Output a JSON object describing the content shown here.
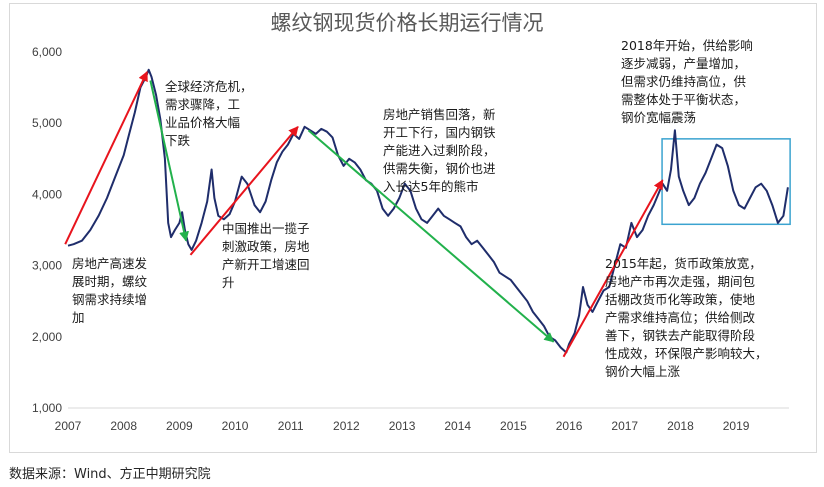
{
  "chart_data": {
    "type": "line",
    "title": "螺纹钢现货价格长期运行情况",
    "x_ticks": [
      "2007",
      "2008",
      "2009",
      "2010",
      "2011",
      "2012",
      "2013",
      "2014",
      "2015",
      "2016",
      "2017",
      "2018",
      "2019"
    ],
    "y_ticks": [
      "1,000",
      "2,000",
      "3,000",
      "4,000",
      "5,000",
      "6,000"
    ],
    "ylim": [
      1000,
      6000
    ],
    "xlim": [
      2007.0,
      2019.95
    ],
    "grid": false,
    "legend": "none",
    "series": [
      {
        "color": "#1f2d6b",
        "points": [
          [
            2007.0,
            3280
          ],
          [
            2007.1,
            3300
          ],
          [
            2007.25,
            3350
          ],
          [
            2007.4,
            3500
          ],
          [
            2007.55,
            3700
          ],
          [
            2007.7,
            3950
          ],
          [
            2007.85,
            4250
          ],
          [
            2008.0,
            4550
          ],
          [
            2008.1,
            4850
          ],
          [
            2008.2,
            5150
          ],
          [
            2008.3,
            5500
          ],
          [
            2008.4,
            5650
          ],
          [
            2008.45,
            5750
          ],
          [
            2008.5,
            5650
          ],
          [
            2008.58,
            5400
          ],
          [
            2008.66,
            5050
          ],
          [
            2008.74,
            4500
          ],
          [
            2008.8,
            3600
          ],
          [
            2008.85,
            3400
          ],
          [
            2008.92,
            3500
          ],
          [
            2009.0,
            3600
          ],
          [
            2009.05,
            3750
          ],
          [
            2009.1,
            3500
          ],
          [
            2009.16,
            3300
          ],
          [
            2009.22,
            3220
          ],
          [
            2009.3,
            3350
          ],
          [
            2009.4,
            3600
          ],
          [
            2009.5,
            3900
          ],
          [
            2009.58,
            4350
          ],
          [
            2009.63,
            3950
          ],
          [
            2009.7,
            3700
          ],
          [
            2009.8,
            3650
          ],
          [
            2009.9,
            3720
          ],
          [
            2010.0,
            3900
          ],
          [
            2010.12,
            4250
          ],
          [
            2010.22,
            4150
          ],
          [
            2010.35,
            3850
          ],
          [
            2010.45,
            3750
          ],
          [
            2010.55,
            3900
          ],
          [
            2010.65,
            4200
          ],
          [
            2010.75,
            4450
          ],
          [
            2010.85,
            4600
          ],
          [
            2010.95,
            4700
          ],
          [
            2011.05,
            4850
          ],
          [
            2011.15,
            4780
          ],
          [
            2011.25,
            4950
          ],
          [
            2011.35,
            4900
          ],
          [
            2011.45,
            4850
          ],
          [
            2011.55,
            4920
          ],
          [
            2011.65,
            4880
          ],
          [
            2011.75,
            4800
          ],
          [
            2011.85,
            4550
          ],
          [
            2011.95,
            4400
          ],
          [
            2012.05,
            4500
          ],
          [
            2012.15,
            4450
          ],
          [
            2012.25,
            4350
          ],
          [
            2012.35,
            4200
          ],
          [
            2012.45,
            4150
          ],
          [
            2012.55,
            4050
          ],
          [
            2012.65,
            3800
          ],
          [
            2012.75,
            3700
          ],
          [
            2012.85,
            3800
          ],
          [
            2012.95,
            3950
          ],
          [
            2013.05,
            4150
          ],
          [
            2013.15,
            4050
          ],
          [
            2013.25,
            3800
          ],
          [
            2013.35,
            3650
          ],
          [
            2013.45,
            3600
          ],
          [
            2013.55,
            3700
          ],
          [
            2013.65,
            3800
          ],
          [
            2013.75,
            3700
          ],
          [
            2013.85,
            3650
          ],
          [
            2013.95,
            3600
          ],
          [
            2014.05,
            3550
          ],
          [
            2014.15,
            3400
          ],
          [
            2014.25,
            3300
          ],
          [
            2014.35,
            3350
          ],
          [
            2014.45,
            3250
          ],
          [
            2014.55,
            3150
          ],
          [
            2014.65,
            3050
          ],
          [
            2014.75,
            2900
          ],
          [
            2014.85,
            2850
          ],
          [
            2014.95,
            2800
          ],
          [
            2015.05,
            2700
          ],
          [
            2015.15,
            2600
          ],
          [
            2015.25,
            2500
          ],
          [
            2015.35,
            2350
          ],
          [
            2015.45,
            2250
          ],
          [
            2015.55,
            2150
          ],
          [
            2015.65,
            2000
          ],
          [
            2015.75,
            1950
          ],
          [
            2015.85,
            1850
          ],
          [
            2015.95,
            1780
          ],
          [
            2016.0,
            1900
          ],
          [
            2016.1,
            2050
          ],
          [
            2016.18,
            2300
          ],
          [
            2016.25,
            2700
          ],
          [
            2016.33,
            2450
          ],
          [
            2016.42,
            2350
          ],
          [
            2016.52,
            2500
          ],
          [
            2016.62,
            2650
          ],
          [
            2016.72,
            2700
          ],
          [
            2016.82,
            3000
          ],
          [
            2016.92,
            3300
          ],
          [
            2017.02,
            3250
          ],
          [
            2017.12,
            3600
          ],
          [
            2017.22,
            3400
          ],
          [
            2017.32,
            3500
          ],
          [
            2017.42,
            3700
          ],
          [
            2017.52,
            3850
          ],
          [
            2017.6,
            4000
          ],
          [
            2017.68,
            4150
          ],
          [
            2017.76,
            4050
          ],
          [
            2017.83,
            4350
          ],
          [
            2017.9,
            4900
          ],
          [
            2017.97,
            4250
          ],
          [
            2018.05,
            4050
          ],
          [
            2018.15,
            3850
          ],
          [
            2018.25,
            3950
          ],
          [
            2018.35,
            4150
          ],
          [
            2018.45,
            4300
          ],
          [
            2018.55,
            4500
          ],
          [
            2018.65,
            4700
          ],
          [
            2018.75,
            4650
          ],
          [
            2018.85,
            4400
          ],
          [
            2018.95,
            4050
          ],
          [
            2019.05,
            3850
          ],
          [
            2019.15,
            3800
          ],
          [
            2019.25,
            3950
          ],
          [
            2019.35,
            4100
          ],
          [
            2019.45,
            4150
          ],
          [
            2019.55,
            4050
          ],
          [
            2019.65,
            3850
          ],
          [
            2019.75,
            3600
          ],
          [
            2019.85,
            3700
          ],
          [
            2019.93,
            4100
          ]
        ]
      }
    ],
    "annotations": [
      {
        "lines": [
          "房地产高速发",
          "展时期，螺纹",
          "钢需求持续增",
          "加"
        ]
      },
      {
        "lines": [
          "全球经济危机，",
          "需求骤降，工",
          "业品价格大幅",
          "下跌"
        ]
      },
      {
        "lines": [
          "中国推出一揽子",
          "刺激政策，房地",
          "产新开工增速回",
          "升"
        ]
      },
      {
        "lines": [
          "房地产销售回落，新",
          "开工下行，国内钢铁",
          "产能进入过剩阶段，",
          "供需失衡，钢价也进",
          "入长达5年的熊市"
        ]
      },
      {
        "lines": [
          "2018年开始，供给影响",
          "逐步减弱，产量增加，",
          "但需求仍维持高位，供",
          "需整体处于平衡状态，",
          "钢价宽幅震荡"
        ]
      },
      {
        "lines": [
          "2015年起，货币政策放宽，",
          "房地产市再次走强，期间包",
          "括棚改货币化等政策，使地",
          "产需求维持高位；供给侧改",
          "善下，钢铁去产能取得阶段",
          "性成效，环保限产影响较大，",
          "钢价大幅上涨"
        ]
      }
    ],
    "trend_arrows": [
      {
        "color": "#e8141d",
        "from": [
          2006.95,
          3300
        ],
        "to": [
          2008.42,
          5720
        ]
      },
      {
        "color": "#22b14c",
        "from": [
          2008.48,
          5600
        ],
        "to": [
          2009.12,
          3350
        ]
      },
      {
        "color": "#e8141d",
        "from": [
          2009.2,
          3150
        ],
        "to": [
          2011.13,
          4950
        ]
      },
      {
        "color": "#22b14c",
        "from": [
          2011.32,
          4900
        ],
        "to": [
          2015.72,
          1930
        ]
      },
      {
        "color": "#e8141d",
        "from": [
          2015.9,
          1720
        ],
        "to": [
          2017.68,
          4200
        ]
      }
    ],
    "highlight_box": {
      "color": "#3ba3d0",
      "x_range": [
        2017.67,
        2019.97
      ],
      "y_range": [
        3580,
        4780
      ]
    }
  },
  "source": "数据来源：Wind、方正中期研究院"
}
